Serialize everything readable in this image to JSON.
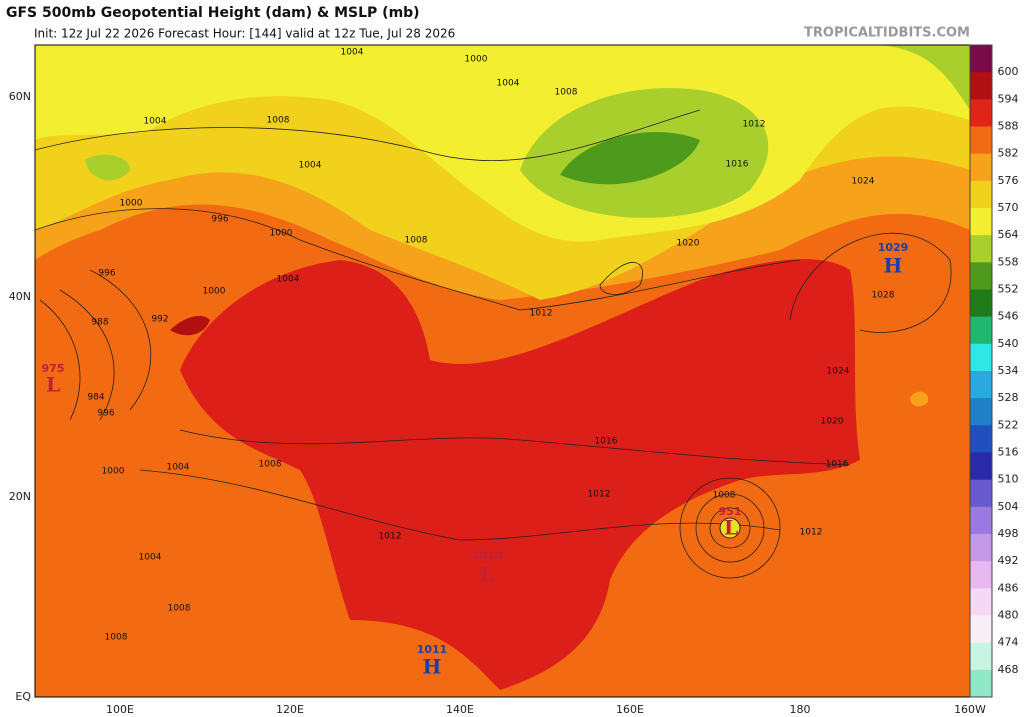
{
  "header": {
    "title": "GFS 500mb Geopotential Height (dam) & MSLP (mb)",
    "subtitle": "Init: 12z Jul 22 2026   Forecast Hour: [144]   valid at 12z Tue, Jul 28 2026",
    "credit": "TROPICALTIDBITS.COM"
  },
  "latitude_labels": [
    "60N",
    "40N",
    "20N",
    "EQ"
  ],
  "longitude_labels": [
    "100E",
    "120E",
    "140E",
    "160E",
    "180",
    "160W"
  ],
  "colorbar": {
    "labels": [
      "600",
      "594",
      "588",
      "582",
      "576",
      "570",
      "564",
      "558",
      "552",
      "546",
      "540",
      "534",
      "528",
      "522",
      "516",
      "510",
      "504",
      "498",
      "492",
      "486",
      "480",
      "474",
      "468"
    ],
    "colors": [
      "#7a0a4a",
      "#b01010",
      "#e02418",
      "#f26b12",
      "#f6a21a",
      "#f1d11b",
      "#f3ee2f",
      "#a9cf2c",
      "#4e9a1c",
      "#1f7a1a",
      "#20b870",
      "#2ee8e8",
      "#2aa8e0",
      "#2080c8",
      "#2050c0",
      "#2a2aa8",
      "#6a5ad0",
      "#9a7ae0",
      "#c49ae8",
      "#e8b8f0",
      "#f4d8f4",
      "#f6f0f6",
      "#c8f4e4",
      "#8fe8c8"
    ]
  },
  "centers": [
    {
      "value": "1029",
      "letter": "H"
    },
    {
      "value": "1010",
      "letter": "L"
    },
    {
      "value": "1011",
      "letter": "H"
    },
    {
      "value": "975",
      "letter": "L"
    },
    {
      "value": "951",
      "letter": "L"
    }
  ],
  "isobar_labels": [
    "1004",
    "1000",
    "1004",
    "1008",
    "1004",
    "1008",
    "1012",
    "1004",
    "1016",
    "1000",
    "996",
    "1024",
    "1000",
    "1008",
    "1020",
    "996",
    "1004",
    "1000",
    "1028",
    "1012",
    "992",
    "988",
    "1024",
    "984",
    "996",
    "1020",
    "1016",
    "1016",
    "1004",
    "1000",
    "1008",
    "1012",
    "1008",
    "1012",
    "1012",
    "1004",
    "1008",
    "1008"
  ]
}
